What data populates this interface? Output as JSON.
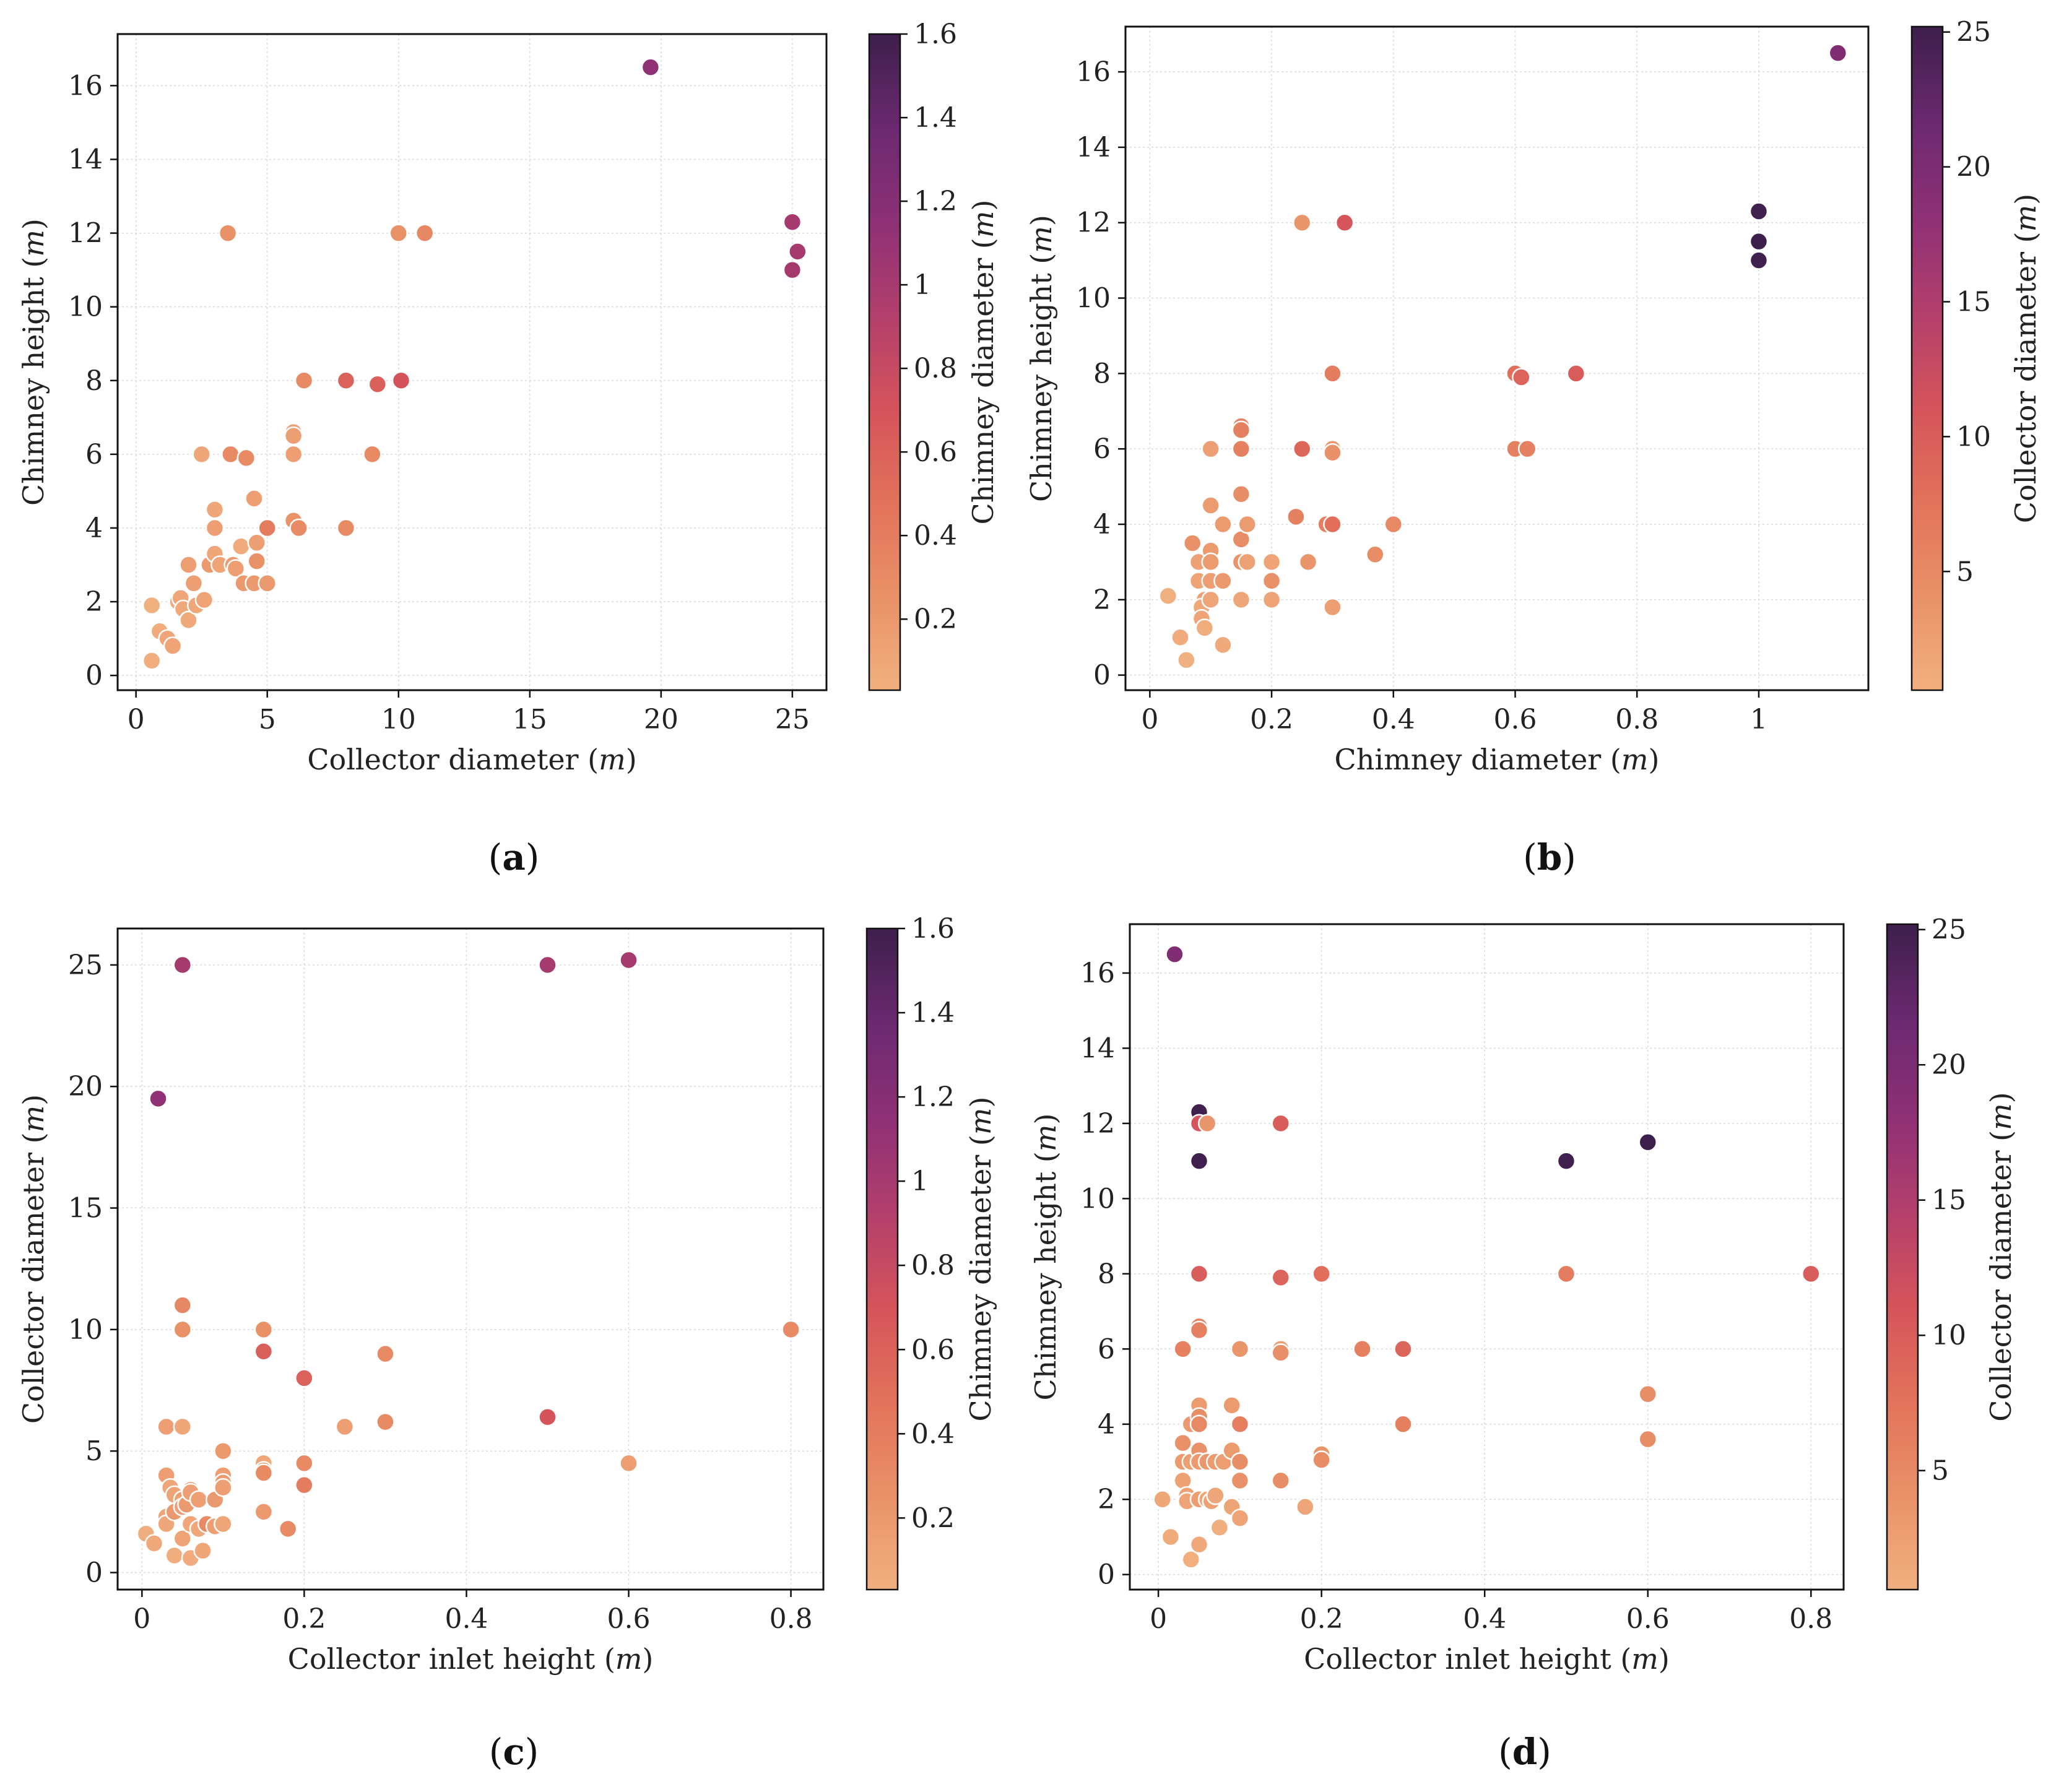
{
  "palette": [
    "#F1B07F",
    "#E99168",
    "#E2725B",
    "#D5535B",
    "#B23F6C",
    "#8E3076",
    "#6B296F",
    "#3D1F4C"
  ],
  "chart_data": [
    {
      "id": "a",
      "type": "scatter",
      "panel_label": "(a)",
      "xlabel": "Collector diameter (m)",
      "ylabel": "Chimney height (m)",
      "colorbar_label": "Chimney diameter (m)",
      "xlim": [
        -0.7,
        26.3
      ],
      "ylim": [
        -0.4,
        17.4
      ],
      "xticks": [
        0,
        5,
        10,
        15,
        20,
        25
      ],
      "yticks": [
        0,
        2,
        4,
        6,
        8,
        10,
        12,
        14,
        16
      ],
      "cbar_range": [
        0.03,
        1.6
      ],
      "cbar_ticks": [
        0.2,
        0.4,
        0.6,
        0.8,
        1.0,
        1.2,
        1.4,
        1.6
      ],
      "points": [
        [
          0.6,
          0.4,
          0.05
        ],
        [
          0.6,
          1.9,
          0.03
        ],
        [
          0.9,
          1.2,
          0.06
        ],
        [
          1.2,
          1.0,
          0.1
        ],
        [
          1.4,
          0.8,
          0.12
        ],
        [
          1.6,
          2.0,
          0.08
        ],
        [
          1.7,
          2.1,
          0.1
        ],
        [
          1.8,
          1.8,
          0.09
        ],
        [
          2.0,
          3.0,
          0.15
        ],
        [
          2.0,
          1.5,
          0.08
        ],
        [
          2.2,
          2.5,
          0.15
        ],
        [
          2.3,
          1.9,
          0.1
        ],
        [
          2.5,
          6.0,
          0.1
        ],
        [
          2.6,
          2.05,
          0.12
        ],
        [
          2.8,
          3.0,
          0.2
        ],
        [
          3.0,
          4.5,
          0.1
        ],
        [
          3.0,
          3.3,
          0.1
        ],
        [
          3.0,
          4.0,
          0.15
        ],
        [
          3.2,
          3.0,
          0.12
        ],
        [
          3.5,
          12.0,
          0.25
        ],
        [
          3.6,
          6.0,
          0.3
        ],
        [
          3.7,
          3.0,
          0.2
        ],
        [
          3.8,
          2.9,
          0.15
        ],
        [
          4.0,
          3.5,
          0.07
        ],
        [
          4.1,
          2.5,
          0.2
        ],
        [
          4.2,
          5.9,
          0.3
        ],
        [
          4.5,
          2.5,
          0.2
        ],
        [
          4.5,
          4.8,
          0.15
        ],
        [
          4.6,
          3.1,
          0.25
        ],
        [
          4.6,
          3.6,
          0.15
        ],
        [
          5.0,
          4.0,
          0.4
        ],
        [
          5.0,
          2.5,
          0.2
        ],
        [
          6.0,
          6.6,
          0.15
        ],
        [
          6.0,
          6.5,
          0.15
        ],
        [
          6.0,
          6.0,
          0.15
        ],
        [
          6.0,
          4.2,
          0.24
        ],
        [
          6.2,
          4.0,
          0.3
        ],
        [
          6.4,
          8.0,
          0.3
        ],
        [
          8.0,
          8.0,
          0.6
        ],
        [
          8.0,
          4.0,
          0.3
        ],
        [
          9.0,
          6.0,
          0.3
        ],
        [
          9.2,
          7.9,
          0.61
        ],
        [
          10.0,
          12.0,
          0.25
        ],
        [
          10.1,
          8.0,
          0.7
        ],
        [
          11.0,
          12.0,
          0.32
        ],
        [
          19.6,
          16.5,
          1.13
        ],
        [
          25.0,
          12.3,
          1.0
        ],
        [
          25.2,
          11.5,
          1.0
        ],
        [
          25.0,
          11.0,
          1.0
        ]
      ]
    },
    {
      "id": "b",
      "type": "scatter",
      "panel_label": "(b)",
      "xlabel": "Chimney diameter (m)",
      "ylabel": "Chimney height (m)",
      "colorbar_label": "Collector diameter (m)",
      "xlim": [
        -0.04,
        1.18
      ],
      "ylim": [
        -0.4,
        17.2
      ],
      "xticks": [
        0.0,
        0.2,
        0.4,
        0.6,
        0.8,
        1.0
      ],
      "yticks": [
        0,
        2,
        4,
        6,
        8,
        10,
        12,
        14,
        16
      ],
      "cbar_range": [
        0.6,
        25.2
      ],
      "cbar_ticks": [
        5,
        10,
        15,
        20,
        25
      ],
      "points": [
        [
          0.03,
          2.1,
          0.6
        ],
        [
          0.05,
          1.0,
          1.0
        ],
        [
          0.06,
          0.4,
          0.6
        ],
        [
          0.07,
          3.5,
          4.0
        ],
        [
          0.08,
          3.0,
          2.2
        ],
        [
          0.08,
          2.5,
          2.0
        ],
        [
          0.09,
          2.0,
          2.3
        ],
        [
          0.085,
          1.8,
          1.6
        ],
        [
          0.085,
          1.5,
          2.0
        ],
        [
          0.09,
          1.25,
          0.9
        ],
        [
          0.1,
          6.0,
          2.5
        ],
        [
          0.1,
          4.5,
          3.0
        ],
        [
          0.1,
          3.3,
          3.0
        ],
        [
          0.1,
          3.0,
          3.0
        ],
        [
          0.1,
          2.5,
          2.6
        ],
        [
          0.1,
          2.0,
          1.7
        ],
        [
          0.12,
          4.0,
          3.0
        ],
        [
          0.12,
          2.5,
          3.2
        ],
        [
          0.12,
          0.8,
          1.4
        ],
        [
          0.15,
          6.6,
          6.0
        ],
        [
          0.15,
          6.5,
          6.0
        ],
        [
          0.15,
          6.0,
          6.0
        ],
        [
          0.15,
          4.8,
          4.5
        ],
        [
          0.15,
          3.6,
          4.6
        ],
        [
          0.15,
          3.0,
          3.8
        ],
        [
          0.16,
          3.0,
          2.2
        ],
        [
          0.15,
          2.0,
          1.7
        ],
        [
          0.16,
          4.0,
          3.0
        ],
        [
          0.2,
          3.0,
          2.0
        ],
        [
          0.2,
          2.5,
          4.1
        ],
        [
          0.2,
          2.0,
          2.0
        ],
        [
          0.24,
          4.2,
          6.0
        ],
        [
          0.25,
          12.0,
          3.5
        ],
        [
          0.25,
          6.0,
          9.0
        ],
        [
          0.26,
          3.0,
          3.5
        ],
        [
          0.29,
          4.0,
          6.2
        ],
        [
          0.3,
          8.0,
          6.4
        ],
        [
          0.3,
          6.0,
          3.6
        ],
        [
          0.3,
          5.9,
          4.2
        ],
        [
          0.3,
          4.0,
          8.0
        ],
        [
          0.3,
          1.8,
          2.5
        ],
        [
          0.32,
          12.0,
          11.0
        ],
        [
          0.37,
          3.2,
          4.5
        ],
        [
          0.4,
          4.0,
          5.0
        ],
        [
          0.6,
          8.0,
          8.0
        ],
        [
          0.61,
          7.9,
          9.2
        ],
        [
          0.6,
          6.0,
          6.0
        ],
        [
          0.62,
          6.0,
          6.0
        ],
        [
          0.7,
          8.0,
          10.1
        ],
        [
          1.0,
          12.3,
          25.0
        ],
        [
          1.0,
          11.5,
          25.2
        ],
        [
          1.0,
          11.0,
          25.0
        ],
        [
          1.13,
          16.5,
          19.6
        ]
      ]
    },
    {
      "id": "c",
      "type": "scatter",
      "panel_label": "(c)",
      "xlabel": "Collector inlet height (m)",
      "ylabel": "Collector diameter (m)",
      "colorbar_label": "Chimney diameter (m)",
      "xlim": [
        -0.03,
        0.84
      ],
      "ylim": [
        -0.7,
        26.5
      ],
      "xticks": [
        0.0,
        0.2,
        0.4,
        0.6,
        0.8
      ],
      "yticks": [
        0,
        5,
        10,
        15,
        20,
        25
      ],
      "cbar_range": [
        0.03,
        1.6
      ],
      "cbar_ticks": [
        0.2,
        0.4,
        0.6,
        0.8,
        1.0,
        1.2,
        1.4,
        1.6
      ],
      "points": [
        [
          0.005,
          1.6,
          0.05
        ],
        [
          0.015,
          1.2,
          0.08
        ],
        [
          0.02,
          19.5,
          1.13
        ],
        [
          0.03,
          6.0,
          0.15
        ],
        [
          0.03,
          4.0,
          0.15
        ],
        [
          0.035,
          3.5,
          0.1
        ],
        [
          0.03,
          2.3,
          0.12
        ],
        [
          0.03,
          2.0,
          0.1
        ],
        [
          0.04,
          3.2,
          0.12
        ],
        [
          0.04,
          2.5,
          0.2
        ],
        [
          0.04,
          0.7,
          0.05
        ],
        [
          0.05,
          25.0,
          1.0
        ],
        [
          0.05,
          11.0,
          0.32
        ],
        [
          0.05,
          10.0,
          0.25
        ],
        [
          0.05,
          6.0,
          0.1
        ],
        [
          0.05,
          3.0,
          0.15
        ],
        [
          0.05,
          2.7,
          0.15
        ],
        [
          0.05,
          1.4,
          0.12
        ],
        [
          0.055,
          2.8,
          0.2
        ],
        [
          0.06,
          3.4,
          0.2
        ],
        [
          0.06,
          3.3,
          0.15
        ],
        [
          0.06,
          2.0,
          0.1
        ],
        [
          0.06,
          0.6,
          0.06
        ],
        [
          0.07,
          3.0,
          0.15
        ],
        [
          0.07,
          1.8,
          0.1
        ],
        [
          0.075,
          0.9,
          0.1
        ],
        [
          0.08,
          2.0,
          0.3
        ],
        [
          0.09,
          3.0,
          0.2
        ],
        [
          0.09,
          1.9,
          0.15
        ],
        [
          0.1,
          5.0,
          0.2
        ],
        [
          0.1,
          4.0,
          0.15
        ],
        [
          0.1,
          3.7,
          0.2
        ],
        [
          0.1,
          3.5,
          0.15
        ],
        [
          0.1,
          2.0,
          0.1
        ],
        [
          0.15,
          10.0,
          0.25
        ],
        [
          0.15,
          9.1,
          0.61
        ],
        [
          0.15,
          4.5,
          0.1
        ],
        [
          0.15,
          4.2,
          0.25
        ],
        [
          0.15,
          4.1,
          0.3
        ],
        [
          0.15,
          2.5,
          0.2
        ],
        [
          0.18,
          1.8,
          0.3
        ],
        [
          0.2,
          8.0,
          0.6
        ],
        [
          0.2,
          4.5,
          0.3
        ],
        [
          0.2,
          3.6,
          0.4
        ],
        [
          0.25,
          6.0,
          0.15
        ],
        [
          0.3,
          9.0,
          0.3
        ],
        [
          0.3,
          6.2,
          0.3
        ],
        [
          0.5,
          25.0,
          1.0
        ],
        [
          0.5,
          6.4,
          0.7
        ],
        [
          0.6,
          25.2,
          1.0
        ],
        [
          0.6,
          4.5,
          0.15
        ],
        [
          0.8,
          10.0,
          0.3
        ]
      ]
    },
    {
      "id": "d",
      "type": "scatter",
      "panel_label": "(d)",
      "xlabel": "Collector inlet height (m)",
      "ylabel": "Chimney height (m)",
      "colorbar_label": "Collector diameter (m)",
      "xlim": [
        -0.035,
        0.84
      ],
      "ylim": [
        -0.4,
        17.3
      ],
      "xticks": [
        0.0,
        0.2,
        0.4,
        0.6,
        0.8
      ],
      "yticks": [
        0,
        2,
        4,
        6,
        8,
        10,
        12,
        14,
        16
      ],
      "cbar_range": [
        0.6,
        25.2
      ],
      "cbar_ticks": [
        5,
        10,
        15,
        20,
        25
      ],
      "points": [
        [
          0.005,
          2.0,
          1.6
        ],
        [
          0.015,
          1.0,
          1.2
        ],
        [
          0.02,
          16.5,
          19.6
        ],
        [
          0.03,
          6.0,
          6.0
        ],
        [
          0.03,
          3.5,
          4.0
        ],
        [
          0.03,
          3.0,
          3.0
        ],
        [
          0.03,
          2.5,
          2.2
        ],
        [
          0.035,
          2.1,
          2.3
        ],
        [
          0.035,
          1.95,
          2.0
        ],
        [
          0.04,
          4.0,
          3.2
        ],
        [
          0.04,
          3.0,
          2.5
        ],
        [
          0.04,
          0.4,
          0.7
        ],
        [
          0.05,
          12.3,
          25.0
        ],
        [
          0.05,
          12.0,
          11.0
        ],
        [
          0.05,
          11.0,
          25.0
        ],
        [
          0.05,
          8.0,
          10.0
        ],
        [
          0.05,
          6.6,
          6.0
        ],
        [
          0.05,
          6.5,
          6.0
        ],
        [
          0.05,
          4.5,
          3.0
        ],
        [
          0.05,
          4.2,
          4.5
        ],
        [
          0.05,
          4.0,
          5.0
        ],
        [
          0.05,
          3.3,
          4.0
        ],
        [
          0.05,
          3.0,
          3.0
        ],
        [
          0.05,
          2.0,
          2.7
        ],
        [
          0.05,
          0.8,
          1.4
        ],
        [
          0.06,
          12.0,
          3.5
        ],
        [
          0.06,
          3.0,
          3.4
        ],
        [
          0.06,
          2.0,
          2.0
        ],
        [
          0.065,
          1.95,
          2.2
        ],
        [
          0.07,
          3.0,
          3.0
        ],
        [
          0.07,
          2.1,
          1.8
        ],
        [
          0.075,
          1.25,
          0.9
        ],
        [
          0.08,
          3.0,
          2.8
        ],
        [
          0.09,
          4.5,
          3.0
        ],
        [
          0.09,
          3.3,
          3.0
        ],
        [
          0.09,
          1.8,
          1.9
        ],
        [
          0.1,
          6.0,
          3.6
        ],
        [
          0.1,
          4.0,
          6.2
        ],
        [
          0.1,
          3.0,
          4.5
        ],
        [
          0.1,
          2.5,
          4.1
        ],
        [
          0.1,
          1.5,
          2.0
        ],
        [
          0.15,
          12.0,
          10.0
        ],
        [
          0.15,
          7.9,
          9.2
        ],
        [
          0.15,
          6.0,
          2.5
        ],
        [
          0.15,
          5.9,
          4.2
        ],
        [
          0.15,
          2.5,
          4.5
        ],
        [
          0.18,
          1.8,
          1.8
        ],
        [
          0.2,
          8.0,
          8.0
        ],
        [
          0.2,
          3.2,
          3.6
        ],
        [
          0.2,
          3.05,
          4.6
        ],
        [
          0.25,
          6.0,
          6.0
        ],
        [
          0.3,
          6.0,
          9.0
        ],
        [
          0.3,
          4.0,
          6.2
        ],
        [
          0.5,
          11.0,
          25.0
        ],
        [
          0.5,
          8.0,
          6.4
        ],
        [
          0.6,
          11.5,
          25.2
        ],
        [
          0.6,
          4.8,
          4.5
        ],
        [
          0.6,
          3.6,
          4.5
        ],
        [
          0.8,
          8.0,
          10.0
        ]
      ]
    }
  ]
}
